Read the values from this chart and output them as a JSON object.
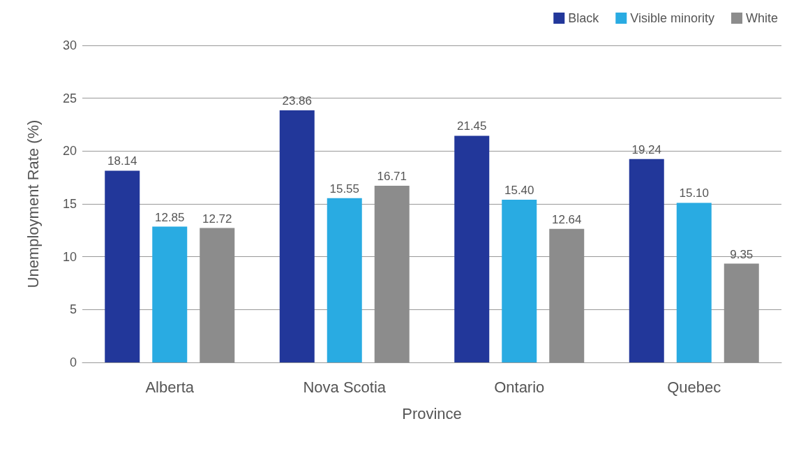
{
  "chart_data": {
    "type": "bar",
    "xlabel": "Province",
    "ylabel": "Unemployment Rate (%)",
    "categories": [
      "Alberta",
      "Nova Scotia",
      "Ontario",
      "Quebec"
    ],
    "series": [
      {
        "name": "Black",
        "color": "#22379a",
        "values": [
          18.14,
          23.86,
          21.45,
          19.24
        ]
      },
      {
        "name": "Visible minority",
        "color": "#29abe2",
        "values": [
          12.85,
          15.55,
          15.4,
          15.1
        ]
      },
      {
        "name": "White",
        "color": "#8c8c8c",
        "values": [
          12.72,
          16.71,
          12.64,
          9.35
        ]
      }
    ],
    "value_labels": [
      [
        "18.14",
        "23.86",
        "21.45",
        "19.24"
      ],
      [
        "12.85",
        "15.55",
        "15.40",
        "15.10"
      ],
      [
        "12.72",
        "16.71",
        "12.64",
        "9.35"
      ]
    ],
    "ylim": [
      0,
      30
    ],
    "yticks": [
      0,
      5,
      10,
      15,
      20,
      25,
      30
    ],
    "grid": "y",
    "legend": "top right"
  }
}
